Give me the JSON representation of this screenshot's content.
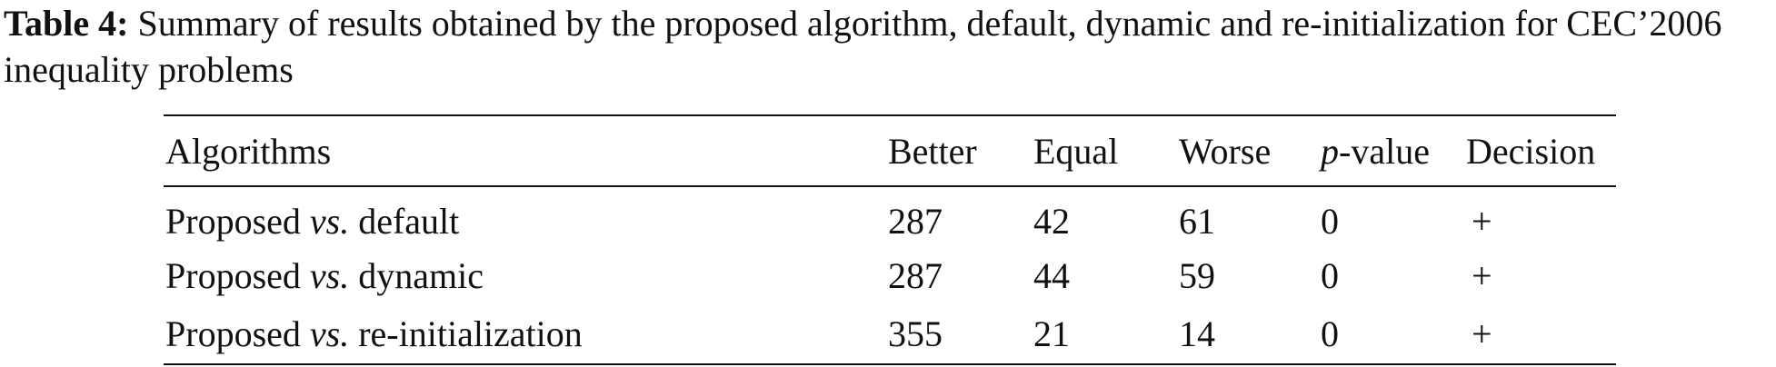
{
  "caption": {
    "label": "Table 4:",
    "text": " Summary of results obtained by the proposed algorithm, default, dynamic and re-initialization for CEC’2006 inequality problems"
  },
  "table": {
    "headers": {
      "algorithms": "Algorithms",
      "better": "Better",
      "equal": "Equal",
      "worse": "Worse",
      "p_var": "p",
      "p_suffix": "-value",
      "decision": "Decision"
    },
    "rows": [
      {
        "prefix": "Proposed ",
        "vs": "vs.",
        "suffix": " default",
        "better": "287",
        "equal": "42",
        "worse": "61",
        "p_value": "0",
        "decision": "+"
      },
      {
        "prefix": "Proposed ",
        "vs": "vs.",
        "suffix": " dynamic",
        "better": "287",
        "equal": "44",
        "worse": "59",
        "p_value": "0",
        "decision": "+"
      },
      {
        "prefix": "Proposed ",
        "vs": "vs.",
        "suffix": " re-initialization",
        "better": "355",
        "equal": "21",
        "worse": "14",
        "p_value": "0",
        "decision": "+"
      }
    ]
  }
}
